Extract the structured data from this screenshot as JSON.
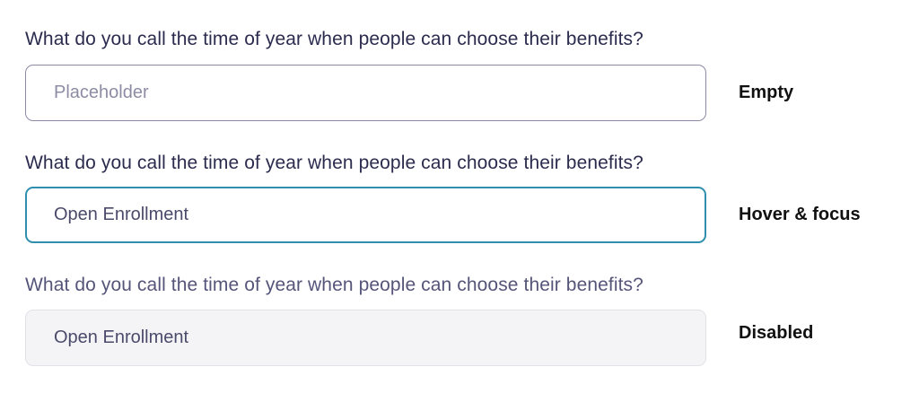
{
  "fields": [
    {
      "label": "What do you call the time of year when people can choose their benefits?",
      "value": "",
      "placeholder": "Placeholder",
      "state": "Empty"
    },
    {
      "label": "What do you call the time of year when people can choose their benefits?",
      "value": "Open Enrollment",
      "state": "Hover & focus"
    },
    {
      "label": "What do you call the time of year when people can choose their benefits?",
      "value": "Open Enrollment",
      "state": "Disabled"
    }
  ],
  "colors": {
    "focus_border": "#2f8fae",
    "label": "#2b2b4e",
    "disabled_bg": "#f4f4f7"
  }
}
